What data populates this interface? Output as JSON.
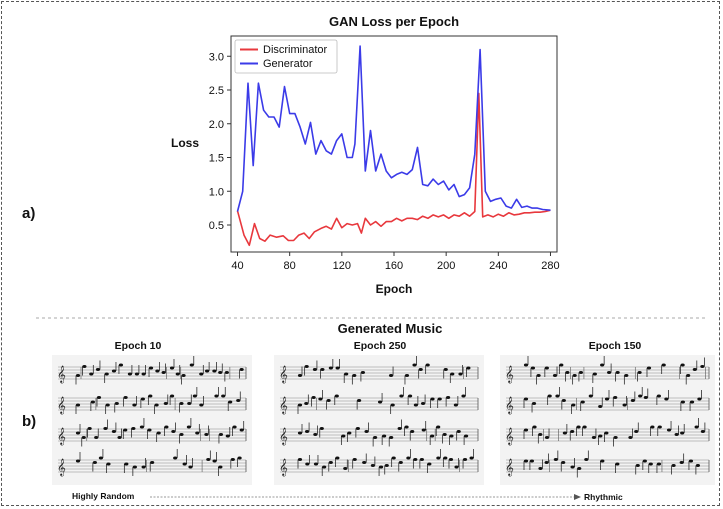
{
  "panel_a_label": "a)",
  "panel_b_label": "b)",
  "chart_data": {
    "type": "line",
    "title": "GAN Loss per Epoch",
    "xlabel": "Epoch",
    "ylabel": "Loss",
    "xlim": [
      35,
      285
    ],
    "ylim": [
      0.1,
      3.3
    ],
    "xticks": [
      40,
      80,
      120,
      160,
      200,
      240,
      280
    ],
    "yticks": [
      0.5,
      1.0,
      1.5,
      2.0,
      2.5,
      3.0
    ],
    "legend_position": "top-left",
    "grid": false,
    "series": [
      {
        "name": "Discriminator",
        "color": "#e8383d",
        "points": [
          [
            40,
            0.71
          ],
          [
            45,
            0.35
          ],
          [
            49,
            0.2
          ],
          [
            53,
            0.52
          ],
          [
            57,
            0.3
          ],
          [
            61,
            0.26
          ],
          [
            65,
            0.35
          ],
          [
            70,
            0.32
          ],
          [
            75,
            0.34
          ],
          [
            79,
            0.27
          ],
          [
            83,
            0.27
          ],
          [
            87,
            0.35
          ],
          [
            91,
            0.38
          ],
          [
            95,
            0.3
          ],
          [
            99,
            0.4
          ],
          [
            104,
            0.45
          ],
          [
            108,
            0.48
          ],
          [
            112,
            0.44
          ],
          [
            116,
            0.6
          ],
          [
            120,
            0.46
          ],
          [
            124,
            0.52
          ],
          [
            128,
            0.5
          ],
          [
            132,
            0.52
          ],
          [
            135,
            0.38
          ],
          [
            138,
            0.6
          ],
          [
            142,
            0.5
          ],
          [
            146,
            0.55
          ],
          [
            150,
            0.48
          ],
          [
            154,
            0.55
          ],
          [
            158,
            0.55
          ],
          [
            162,
            0.6
          ],
          [
            166,
            0.56
          ],
          [
            170,
            0.6
          ],
          [
            174,
            0.6
          ],
          [
            178,
            0.58
          ],
          [
            182,
            0.63
          ],
          [
            186,
            0.6
          ],
          [
            190,
            0.65
          ],
          [
            194,
            0.62
          ],
          [
            198,
            0.65
          ],
          [
            202,
            0.6
          ],
          [
            206,
            0.65
          ],
          [
            210,
            0.63
          ],
          [
            214,
            0.68
          ],
          [
            218,
            0.63
          ],
          [
            222,
            0.7
          ],
          [
            225,
            2.45
          ],
          [
            228,
            0.62
          ],
          [
            232,
            0.65
          ],
          [
            236,
            0.62
          ],
          [
            240,
            0.66
          ],
          [
            244,
            0.63
          ],
          [
            248,
            0.68
          ],
          [
            252,
            0.65
          ],
          [
            256,
            0.66
          ],
          [
            260,
            0.68
          ],
          [
            264,
            0.68
          ],
          [
            268,
            0.69
          ],
          [
            272,
            0.69
          ],
          [
            276,
            0.7
          ],
          [
            280,
            0.72
          ]
        ]
      },
      {
        "name": "Generator",
        "color": "#3b3be8",
        "points": [
          [
            40,
            0.7
          ],
          [
            44,
            1.0
          ],
          [
            48,
            2.6
          ],
          [
            52,
            1.38
          ],
          [
            56,
            2.6
          ],
          [
            60,
            2.2
          ],
          [
            64,
            2.1
          ],
          [
            68,
            2.1
          ],
          [
            72,
            1.95
          ],
          [
            76,
            2.55
          ],
          [
            80,
            2.15
          ],
          [
            84,
            2.15
          ],
          [
            88,
            1.95
          ],
          [
            92,
            1.7
          ],
          [
            96,
            2.02
          ],
          [
            100,
            1.55
          ],
          [
            104,
            1.75
          ],
          [
            108,
            1.6
          ],
          [
            112,
            1.55
          ],
          [
            116,
            1.75
          ],
          [
            120,
            1.85
          ],
          [
            124,
            1.5
          ],
          [
            128,
            1.5
          ],
          [
            130,
            1.7
          ],
          [
            134,
            3.15
          ],
          [
            138,
            1.3
          ],
          [
            142,
            1.9
          ],
          [
            146,
            1.3
          ],
          [
            150,
            1.55
          ],
          [
            154,
            1.3
          ],
          [
            158,
            1.2
          ],
          [
            162,
            1.25
          ],
          [
            166,
            1.28
          ],
          [
            170,
            1.25
          ],
          [
            174,
            1.32
          ],
          [
            178,
            1.65
          ],
          [
            182,
            1.1
          ],
          [
            186,
            1.08
          ],
          [
            190,
            1.18
          ],
          [
            194,
            1.1
          ],
          [
            198,
            1.15
          ],
          [
            202,
            1.02
          ],
          [
            206,
            1.1
          ],
          [
            210,
            0.92
          ],
          [
            214,
            0.95
          ],
          [
            218,
            1.05
          ],
          [
            222,
            1.55
          ],
          [
            226,
            3.1
          ],
          [
            230,
            1.0
          ],
          [
            234,
            0.85
          ],
          [
            238,
            0.88
          ],
          [
            242,
            0.9
          ],
          [
            246,
            0.78
          ],
          [
            250,
            0.75
          ],
          [
            254,
            0.88
          ],
          [
            258,
            0.76
          ],
          [
            262,
            0.78
          ],
          [
            266,
            0.75
          ],
          [
            270,
            0.75
          ],
          [
            274,
            0.73
          ],
          [
            280,
            0.72
          ]
        ]
      }
    ]
  },
  "music": {
    "title": "Generated Music",
    "start_label": "Highly Random",
    "end_label": "Rhythmic",
    "panels": [
      {
        "label": "Epoch 10",
        "seed": 11,
        "density": 0.92
      },
      {
        "label": "Epoch 250",
        "seed": 47,
        "density": 0.8
      },
      {
        "label": "Epoch 150",
        "seed": 83,
        "density": 0.86
      }
    ]
  }
}
